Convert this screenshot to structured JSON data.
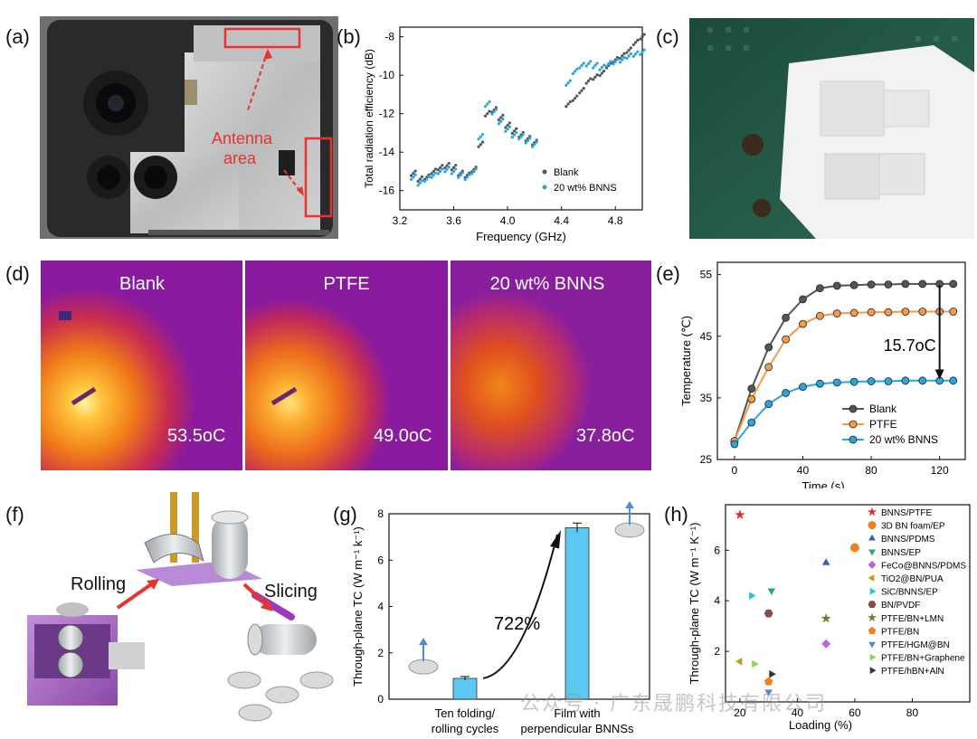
{
  "labels": {
    "a": "(a)",
    "b": "(b)",
    "c": "(c)",
    "d": "(d)",
    "e": "(e)",
    "f": "(f)",
    "g": "(g)",
    "h": "(h)"
  },
  "panel_a": {
    "annotation": "Antenna\narea",
    "annotation_line1": "Antenna",
    "annotation_line2": "area",
    "annotation_color": "#e8332e"
  },
  "panel_d": {
    "images": [
      {
        "title": "Blank",
        "temp": "53.5oC"
      },
      {
        "title": "PTFE",
        "temp": "49.0oC"
      },
      {
        "title": "20 wt% BNNS",
        "temp": "37.8oC"
      }
    ]
  },
  "panel_f": {
    "rolling": "Rolling",
    "slicing": "Slicing"
  },
  "watermark": "公众号 · 广东晟鹏科技有限公司",
  "chart_data": [
    {
      "id": "b",
      "type": "scatter",
      "xlabel": "Frequency (GHz)",
      "ylabel": "Total radiation efficiency (dB)",
      "xlim": [
        3.2,
        5.0
      ],
      "ylim": [
        -17,
        -7.5
      ],
      "xticks": [
        "3.2",
        "3.6",
        "4.0",
        "4.4",
        "4.8"
      ],
      "yticks": [
        "-16",
        "-14",
        "-12",
        "-10",
        "-8"
      ],
      "legend_position": "bottom-right",
      "series": [
        {
          "name": "Blank",
          "color": "#555555",
          "x": [
            3.3,
            3.35,
            3.4,
            3.45,
            3.5,
            3.55,
            3.6,
            3.65,
            3.7,
            3.75,
            3.8,
            3.85,
            3.9,
            3.95,
            4.0,
            4.05,
            4.1,
            4.15,
            4.2,
            4.45,
            4.5,
            4.55,
            4.6,
            4.65,
            4.7,
            4.75,
            4.8,
            4.85,
            4.9,
            4.95,
            5.0
          ],
          "y": [
            -15.1,
            -15.4,
            -15.3,
            -15.0,
            -14.8,
            -14.7,
            -14.8,
            -15.1,
            -15.2,
            -14.9,
            -13.6,
            -12.0,
            -11.8,
            -12.2,
            -12.6,
            -12.9,
            -13.1,
            -13.3,
            -13.5,
            -11.5,
            -11.2,
            -10.8,
            -10.3,
            -10.1,
            -9.9,
            -9.5,
            -9.2,
            -9.0,
            -8.7,
            -8.3,
            -8.0
          ]
        },
        {
          "name": "20 wt% BNNS",
          "color": "#2aa5e0",
          "x": [
            3.3,
            3.35,
            3.4,
            3.45,
            3.5,
            3.55,
            3.6,
            3.65,
            3.7,
            3.75,
            3.8,
            3.85,
            3.9,
            3.95,
            4.0,
            4.05,
            4.1,
            4.15,
            4.2,
            4.45,
            4.5,
            4.55,
            4.6,
            4.65,
            4.7,
            4.75,
            4.8,
            4.85,
            4.9,
            4.95,
            5.0
          ],
          "y": [
            -15.3,
            -15.6,
            -15.4,
            -15.2,
            -15.0,
            -14.9,
            -15.0,
            -15.2,
            -15.3,
            -15.0,
            -13.2,
            -11.5,
            -11.9,
            -12.4,
            -12.8,
            -13.1,
            -13.2,
            -13.4,
            -13.6,
            -10.4,
            -9.8,
            -9.5,
            -9.4,
            -9.5,
            -9.6,
            -9.4,
            -9.3,
            -9.2,
            -9.0,
            -8.9,
            -8.8
          ]
        }
      ]
    },
    {
      "id": "e",
      "type": "line",
      "xlabel": "Time (s)",
      "ylabel": "Temperature (℃)",
      "xlim": [
        -10,
        135
      ],
      "ylim": [
        25,
        57
      ],
      "xticks": [
        "0",
        "40",
        "80",
        "120"
      ],
      "yticks": [
        "25",
        "35",
        "45",
        "55"
      ],
      "x": [
        0,
        10,
        20,
        30,
        40,
        50,
        60,
        70,
        80,
        90,
        100,
        110,
        120,
        128
      ],
      "legend_position": "bottom-right",
      "annotation": "15.7oC",
      "series": [
        {
          "name": "Blank",
          "color": "#555555",
          "values": [
            28,
            36.5,
            43.2,
            48.0,
            51.0,
            52.8,
            53.2,
            53.3,
            53.4,
            53.4,
            53.5,
            53.5,
            53.5,
            53.5
          ]
        },
        {
          "name": "PTFE",
          "color": "#f59a4b",
          "values": [
            28,
            34.8,
            40.0,
            44.5,
            47.0,
            48.3,
            48.7,
            48.8,
            48.9,
            48.9,
            49.0,
            49.0,
            49.0,
            49.0
          ]
        },
        {
          "name": "20 wt% BNNS",
          "color": "#2aa5e0",
          "values": [
            27.5,
            31.0,
            34.0,
            35.8,
            36.8,
            37.3,
            37.5,
            37.6,
            37.7,
            37.7,
            37.8,
            37.8,
            37.8,
            37.8
          ]
        }
      ]
    },
    {
      "id": "g",
      "type": "bar",
      "ylabel": "Through-plane TC (W m⁻¹ k⁻¹)",
      "ylim": [
        0,
        8
      ],
      "yticks": [
        "0",
        "2",
        "4",
        "6",
        "8"
      ],
      "categories": [
        "Ten folding/\nrolling cycles",
        "Film with\nperpendicular BNNSs"
      ],
      "category_lines": [
        [
          "Ten folding/",
          "rolling cycles"
        ],
        [
          "Film with",
          "perpendicular BNNSs"
        ]
      ],
      "values": [
        0.9,
        7.4
      ],
      "errors": [
        0.08,
        0.2
      ],
      "color": "#5bc8f0",
      "annotation": "722%"
    },
    {
      "id": "h",
      "type": "scatter",
      "xlabel": "Loading (%)",
      "ylabel": "Through-plane TC (W m⁻¹ K⁻¹)",
      "xlim": [
        15,
        100
      ],
      "ylim": [
        0,
        7.8
      ],
      "xticks": [
        "20",
        "40",
        "60",
        "80"
      ],
      "yticks": [
        "2",
        "4",
        "6"
      ],
      "legend_position": "right",
      "series": [
        {
          "name": "BNNS/PTFE",
          "color": "#e8232a",
          "marker": "star",
          "x": [
            20
          ],
          "y": [
            7.4
          ]
        },
        {
          "name": "3D BN foam/EP",
          "color": "#f0821e",
          "marker": "circle",
          "x": [
            60
          ],
          "y": [
            6.1
          ]
        },
        {
          "name": "BNNS/PDMS",
          "color": "#2a64c8",
          "marker": "triangle-up",
          "x": [
            50
          ],
          "y": [
            5.5
          ]
        },
        {
          "name": "BNNS/EP",
          "color": "#2aa56e",
          "marker": "triangle-down",
          "x": [
            31
          ],
          "y": [
            4.4
          ]
        },
        {
          "name": "FeCo@BNNS/PDMS",
          "color": "#b567d8",
          "marker": "diamond",
          "x": [
            50
          ],
          "y": [
            2.3
          ]
        },
        {
          "name": "TiO2@BN/PUA",
          "color": "#c29a1e",
          "marker": "triangle-left",
          "x": [
            20
          ],
          "y": [
            1.6
          ]
        },
        {
          "name": "SiC/BNNS/EP",
          "color": "#2ac8c8",
          "marker": "triangle-right",
          "x": [
            24
          ],
          "y": [
            4.2
          ]
        },
        {
          "name": "BN/PVDF",
          "color": "#8a4a4a",
          "marker": "hexagon",
          "x": [
            30
          ],
          "y": [
            3.5
          ]
        },
        {
          "name": "PTFE/BN+LMN",
          "color": "#7a7a2a",
          "marker": "star",
          "x": [
            50
          ],
          "y": [
            3.3
          ]
        },
        {
          "name": "PTFE/BN",
          "color": "#f0821e",
          "marker": "pentagon",
          "x": [
            30
          ],
          "y": [
            0.8
          ]
        },
        {
          "name": "PTFE/HGM@BN",
          "color": "#4a8ad8",
          "marker": "triangle-down",
          "x": [
            30
          ],
          "y": [
            0.4
          ]
        },
        {
          "name": "PTFE/BN+Graphene",
          "color": "#8ad84a",
          "marker": "triangle-right",
          "x": [
            25
          ],
          "y": [
            1.5
          ]
        },
        {
          "name": "PTFE/hBN+AlN",
          "color": "#333333",
          "marker": "triangle-right",
          "x": [
            31
          ],
          "y": [
            1.1
          ]
        }
      ]
    }
  ]
}
